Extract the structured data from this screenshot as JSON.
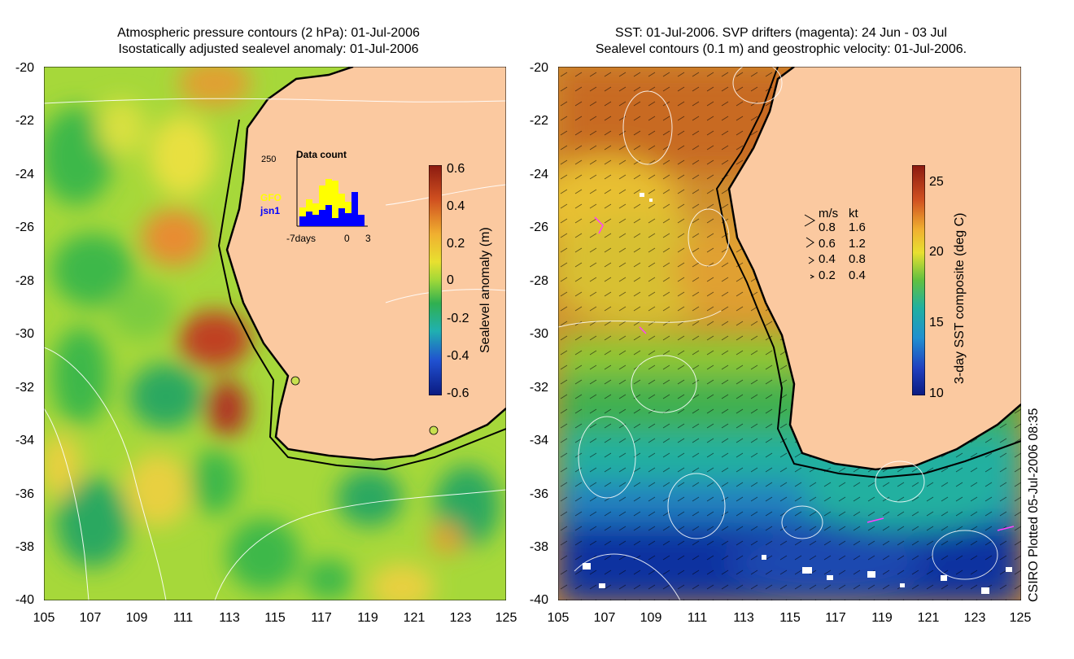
{
  "left_panel": {
    "title_line1": "Atmospheric pressure contours (2 hPa): 01-Jul-2006",
    "title_line2": "Isostatically adjusted sealevel anomaly: 01-Jul-2006",
    "y_ticks": [
      "-20",
      "-22",
      "-24",
      "-26",
      "-28",
      "-30",
      "-32",
      "-34",
      "-36",
      "-38",
      "-40"
    ],
    "x_ticks": [
      "105",
      "107",
      "109",
      "111",
      "113",
      "115",
      "117",
      "119",
      "121",
      "123",
      "125"
    ],
    "colorbar": {
      "label": "Sealevel anomaly (m)",
      "ticks": [
        "0.6",
        "0.4",
        "0.2",
        "0",
        "-0.2",
        "-0.4",
        "-0.6"
      ]
    },
    "inset": {
      "title": "Data count",
      "max_label": "250",
      "series1": "GFO",
      "series2": "jsn1",
      "x_left": "-7days",
      "x_mid": "0",
      "x_right": "3",
      "colors": {
        "gfo": "#ffff00",
        "jsn1": "#0000ff"
      }
    }
  },
  "right_panel": {
    "title_line1": "SST: 01-Jul-2006. SVP drifters (magenta): 24 Jun - 03 Jul",
    "title_line2": "Sealevel contours (0.1 m) and geostrophic velocity: 01-Jul-2006.",
    "y_ticks": [
      "-20",
      "-22",
      "-24",
      "-26",
      "-28",
      "-30",
      "-32",
      "-34",
      "-36",
      "-38",
      "-40"
    ],
    "x_ticks": [
      "105",
      "107",
      "109",
      "111",
      "113",
      "115",
      "117",
      "119",
      "121",
      "123",
      "125"
    ],
    "colorbar": {
      "label": "3-day SST composite (deg C)",
      "ticks": [
        "25",
        "20",
        "15",
        "10"
      ]
    },
    "velocity_legend": {
      "header_ms": "m/s",
      "header_kt": "kt",
      "rows": [
        {
          "ms": "0.8",
          "kt": "1.6"
        },
        {
          "ms": "0.6",
          "kt": "1.2"
        },
        {
          "ms": "0.4",
          "kt": "0.8"
        },
        {
          "ms": "0.2",
          "kt": "0.4"
        }
      ]
    }
  },
  "credit": "CSIRO Plotted 05-Jul-2006 08:35",
  "colors": {
    "land": "#fbc9a0",
    "coast": "#000000"
  }
}
